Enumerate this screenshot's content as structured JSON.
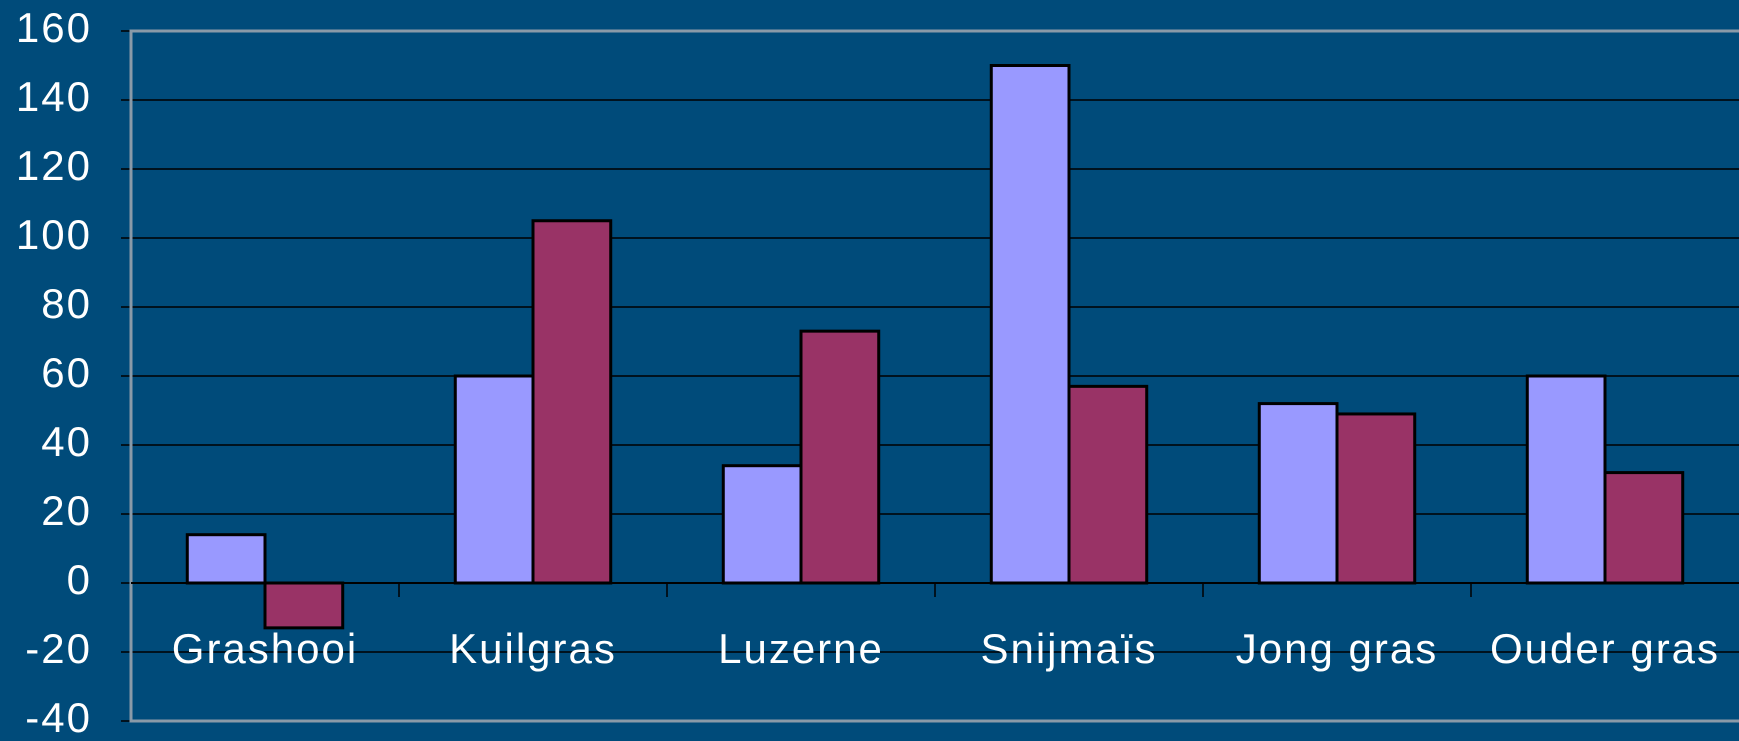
{
  "chart_data": {
    "type": "bar",
    "categories": [
      "Grashooi",
      "Kuilgras",
      "Luzerne",
      "Snijmaïs",
      "Jong gras",
      "Ouder gras"
    ],
    "series": [
      {
        "color": "#9999ff",
        "values": [
          14,
          60,
          34,
          150,
          52,
          60
        ]
      },
      {
        "color": "#993366",
        "values": [
          -13,
          105,
          73,
          57,
          49,
          32
        ]
      }
    ],
    "ylim": [
      -40,
      160
    ],
    "yticks": [
      -40,
      -20,
      0,
      20,
      40,
      60,
      80,
      100,
      120,
      140,
      160
    ],
    "grid": true
  }
}
